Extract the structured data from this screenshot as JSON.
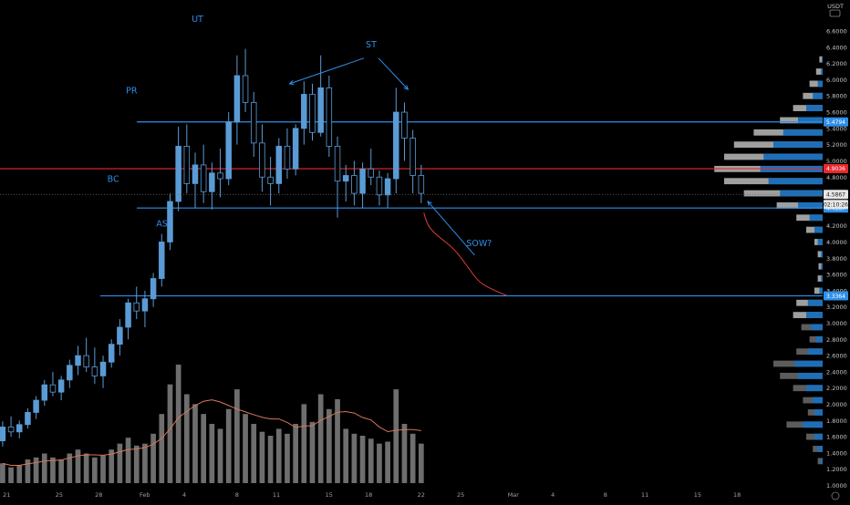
{
  "header": {
    "currency_label": "USDT"
  },
  "chart_data": {
    "type": "candlestick",
    "yaxis": {
      "scale": "linear",
      "range": [
        0.95,
        6.78
      ],
      "ticks": [
        "6.6000",
        "6.4000",
        "6.2000",
        "6.0000",
        "5.8000",
        "5.6000",
        "5.4000",
        "5.2000",
        "5.0000",
        "4.8000",
        "4.6000",
        "4.4000",
        "4.2000",
        "4.0000",
        "3.8000",
        "3.6000",
        "3.4000",
        "3.2000",
        "3.0000",
        "2.8000",
        "2.6000",
        "2.4000",
        "2.2000",
        "2.0000",
        "1.8000",
        "1.6000",
        "1.4000",
        "1.2000",
        "1.0000"
      ]
    },
    "xaxis": {
      "ticks": [
        "21",
        "25",
        "28",
        "Feb",
        "4",
        "8",
        "11",
        "15",
        "18",
        "22",
        "25",
        "Mar",
        "4",
        "8",
        "11",
        "15",
        "18"
      ],
      "tick_values": [
        1.5,
        5.5,
        8.5,
        12,
        15,
        19,
        22,
        26,
        29,
        33,
        36,
        40,
        43,
        47,
        50,
        54,
        57
      ],
      "range": [
        1,
        63.5
      ]
    },
    "grid": false,
    "horizontal_lines": [
      {
        "price": 5.4794,
        "label": "5.4794",
        "color": "#2f8fe8"
      },
      {
        "price": 4.9036,
        "label": "4.9036",
        "color": "#e8282e"
      },
      {
        "price": 4.4187,
        "label": "4.4187",
        "color": "#2f8fe8"
      },
      {
        "price": 3.3364,
        "label": "3.3364",
        "color": "#2f8fe8"
      }
    ],
    "last_price": {
      "price": 4.5867,
      "label": "4.5867",
      "countdown": "02:10:26"
    },
    "annotations": [
      {
        "text": "PR",
        "x": 11.0,
        "y": 5.83
      },
      {
        "text": "BC",
        "x": 9.6,
        "y": 4.74
      },
      {
        "text": "AS",
        "x": 13.3,
        "y": 4.19
      },
      {
        "text": "UT",
        "x": 16.0,
        "y": 6.71
      },
      {
        "text": "ST",
        "x": 29.2,
        "y": 6.4
      },
      {
        "text": "SOW?",
        "x": 37.4,
        "y": 3.95
      }
    ],
    "candles": [
      [
        1.55,
        1.79,
        1.48,
        1.72
      ],
      [
        1.72,
        1.85,
        1.6,
        1.66
      ],
      [
        1.66,
        1.8,
        1.58,
        1.75
      ],
      [
        1.75,
        1.95,
        1.7,
        1.9
      ],
      [
        1.9,
        2.1,
        1.82,
        2.05
      ],
      [
        2.05,
        2.3,
        1.98,
        2.24
      ],
      [
        2.24,
        2.4,
        2.1,
        2.15
      ],
      [
        2.15,
        2.35,
        2.05,
        2.3
      ],
      [
        2.3,
        2.55,
        2.2,
        2.48
      ],
      [
        2.48,
        2.72,
        2.36,
        2.6
      ],
      [
        2.6,
        2.82,
        2.4,
        2.46
      ],
      [
        2.46,
        2.7,
        2.25,
        2.35
      ],
      [
        2.35,
        2.6,
        2.2,
        2.52
      ],
      [
        2.52,
        2.8,
        2.45,
        2.74
      ],
      [
        2.74,
        3.05,
        2.6,
        2.95
      ],
      [
        2.95,
        3.3,
        2.8,
        3.25
      ],
      [
        3.25,
        3.45,
        3.05,
        3.15
      ],
      [
        3.15,
        3.4,
        2.95,
        3.3
      ],
      [
        3.3,
        3.62,
        3.2,
        3.55
      ],
      [
        3.55,
        4.1,
        3.45,
        4.0
      ],
      [
        4.0,
        4.6,
        3.9,
        4.5
      ],
      [
        4.5,
        5.42,
        4.38,
        5.18
      ],
      [
        5.18,
        5.45,
        4.6,
        4.72
      ],
      [
        4.72,
        5.1,
        4.42,
        4.95
      ],
      [
        4.95,
        5.2,
        4.48,
        4.62
      ],
      [
        4.62,
        4.98,
        4.4,
        4.85
      ],
      [
        4.85,
        5.15,
        4.55,
        4.78
      ],
      [
        4.78,
        5.6,
        4.7,
        5.48
      ],
      [
        5.48,
        6.3,
        5.2,
        6.05
      ],
      [
        6.05,
        6.38,
        5.6,
        5.72
      ],
      [
        5.72,
        5.85,
        5.05,
        5.22
      ],
      [
        5.22,
        5.45,
        4.62,
        4.8
      ],
      [
        4.8,
        5.05,
        4.45,
        4.72
      ],
      [
        4.72,
        5.28,
        4.6,
        5.18
      ],
      [
        5.18,
        5.4,
        4.78,
        4.9
      ],
      [
        4.9,
        5.45,
        4.82,
        5.4
      ],
      [
        5.4,
        5.98,
        5.2,
        5.82
      ],
      [
        5.82,
        5.95,
        5.25,
        5.35
      ],
      [
        5.35,
        6.3,
        5.3,
        5.9
      ],
      [
        5.9,
        6.05,
        5.05,
        5.18
      ],
      [
        5.18,
        5.3,
        4.3,
        4.75
      ],
      [
        4.75,
        4.95,
        4.5,
        4.82
      ],
      [
        4.82,
        5.0,
        4.45,
        4.6
      ],
      [
        4.6,
        4.98,
        4.42,
        4.9
      ],
      [
        4.9,
        5.15,
        4.7,
        4.8
      ],
      [
        4.8,
        4.88,
        4.45,
        4.58
      ],
      [
        4.58,
        4.85,
        4.42,
        4.78
      ],
      [
        4.78,
        5.9,
        4.6,
        5.6
      ],
      [
        5.6,
        5.72,
        5.0,
        5.28
      ],
      [
        5.28,
        5.38,
        4.6,
        4.82
      ],
      [
        4.82,
        4.95,
        4.48,
        4.6
      ]
    ],
    "volumes": [
      20,
      16,
      18,
      24,
      26,
      30,
      26,
      24,
      30,
      34,
      30,
      26,
      28,
      34,
      40,
      46,
      38,
      40,
      50,
      70,
      100,
      120,
      90,
      80,
      70,
      60,
      55,
      75,
      95,
      70,
      60,
      52,
      48,
      55,
      50,
      60,
      80,
      62,
      90,
      75,
      85,
      55,
      50,
      48,
      45,
      40,
      42,
      95,
      60,
      50,
      40
    ],
    "projection_path": [
      [
        33.2,
        4.36
      ],
      [
        33.5,
        4.2
      ],
      [
        34.2,
        4.08
      ],
      [
        35.5,
        3.92
      ],
      [
        36.6,
        3.68
      ],
      [
        37.4,
        3.5
      ],
      [
        38.6,
        3.4
      ],
      [
        39.5,
        3.34
      ]
    ],
    "volume_profile": [
      {
        "price": 6.25,
        "a": 0.2,
        "b": 0.05
      },
      {
        "price": 6.1,
        "a": 0.4,
        "b": 0.1
      },
      {
        "price": 5.95,
        "a": 0.8,
        "b": 0.3
      },
      {
        "price": 5.8,
        "a": 1.2,
        "b": 0.6
      },
      {
        "price": 5.65,
        "a": 1.8,
        "b": 1.0
      },
      {
        "price": 5.5,
        "a": 2.6,
        "b": 1.5
      },
      {
        "price": 5.35,
        "a": 4.2,
        "b": 2.4
      },
      {
        "price": 5.2,
        "a": 5.4,
        "b": 3.0
      },
      {
        "price": 5.05,
        "a": 6.0,
        "b": 3.6
      },
      {
        "price": 4.9,
        "a": 6.6,
        "b": 3.8
      },
      {
        "price": 4.75,
        "a": 6.0,
        "b": 3.3
      },
      {
        "price": 4.6,
        "a": 4.8,
        "b": 2.6
      },
      {
        "price": 4.45,
        "a": 2.8,
        "b": 1.5
      },
      {
        "price": 4.3,
        "a": 1.6,
        "b": 0.8
      },
      {
        "price": 4.15,
        "a": 1.0,
        "b": 0.5
      },
      {
        "price": 4.0,
        "a": 0.5,
        "b": 0.3
      },
      {
        "price": 3.85,
        "a": 0.3,
        "b": 0.1
      },
      {
        "price": 3.7,
        "a": 0.25,
        "b": 0.1
      },
      {
        "price": 3.55,
        "a": 0.3,
        "b": 0.1
      },
      {
        "price": 3.4,
        "a": 0.5,
        "b": 0.2
      },
      {
        "price": 3.25,
        "a": 1.6,
        "b": 0.9
      },
      {
        "price": 3.1,
        "a": 1.8,
        "b": 1.0
      },
      {
        "price": 2.95,
        "a": 1.3,
        "b": 0.7
      },
      {
        "price": 2.8,
        "a": 0.8,
        "b": 0.4
      },
      {
        "price": 2.65,
        "a": 1.6,
        "b": 0.9
      },
      {
        "price": 2.5,
        "a": 3.0,
        "b": 1.7
      },
      {
        "price": 2.35,
        "a": 2.6,
        "b": 1.5
      },
      {
        "price": 2.2,
        "a": 1.8,
        "b": 1.0
      },
      {
        "price": 2.05,
        "a": 1.2,
        "b": 0.6
      },
      {
        "price": 1.9,
        "a": 0.9,
        "b": 0.5
      },
      {
        "price": 1.75,
        "a": 2.2,
        "b": 1.2
      },
      {
        "price": 1.6,
        "a": 1.0,
        "b": 0.5
      },
      {
        "price": 1.45,
        "a": 0.6,
        "b": 0.3
      },
      {
        "price": 1.3,
        "a": 0.3,
        "b": 0.1
      }
    ],
    "colors": {
      "candle": "#5b9bd5",
      "volume": "#7a7a7a",
      "volume_ma": "#d9775a",
      "projection": "#e23b3b",
      "annotation": "#2f8fe8",
      "profile_outer": "#a8a8a8",
      "profile_inner": "#1f6fb8",
      "background": "#000000"
    }
  }
}
